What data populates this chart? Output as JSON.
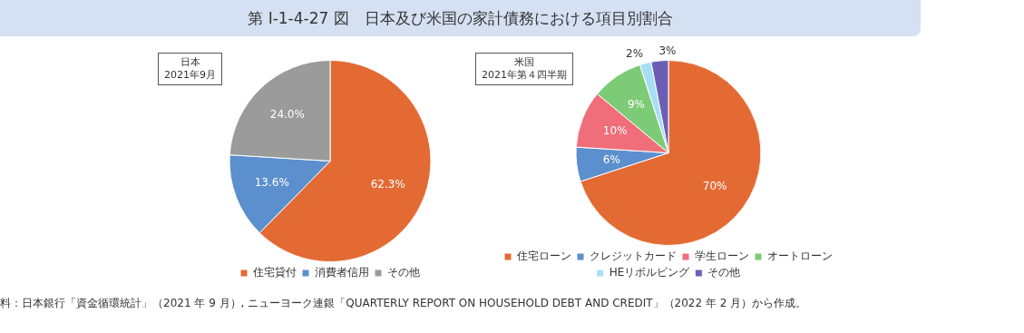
{
  "chart_data": [
    {
      "type": "pie",
      "title": "第 Ⅰ-1-4-27 図　日本及び米国の家計債務における項目別割合",
      "subtitle": "日本\n2021年9月",
      "categories": [
        "住宅貸付",
        "消費者信用",
        "その他"
      ],
      "values": [
        62.3,
        13.6,
        24.0
      ],
      "value_labels": [
        "62.3%",
        "13.6%",
        "24.0%"
      ],
      "colors": [
        "#e46a34",
        "#5b8fcd",
        "#9b9b9b"
      ],
      "legend": "bottom",
      "annotations": [
        "料：日本銀行「資金循環統計」（2021 年 9 月）, ニューヨーク連銀「QUARTERLY REPORT ON HOUSEHOLD DEBT AND CREDIT」（2022 年 2 月）から作成。"
      ]
    },
    {
      "type": "pie",
      "subtitle": "米国\n2021年第４四半期",
      "categories": [
        "住宅ローン",
        "クレジットカード",
        "学生ローン",
        "オートローン",
        "HEリボルビング",
        "その他"
      ],
      "values": [
        70,
        6,
        10,
        9,
        2,
        3
      ],
      "value_labels": [
        "70%",
        "6%",
        "10%",
        "9%",
        "2%",
        "3%"
      ],
      "colors": [
        "#e46a34",
        "#5b8fcd",
        "#f06e7a",
        "#7dcb76",
        "#a8def4",
        "#6a5fb5"
      ],
      "legend": "bottom"
    }
  ]
}
